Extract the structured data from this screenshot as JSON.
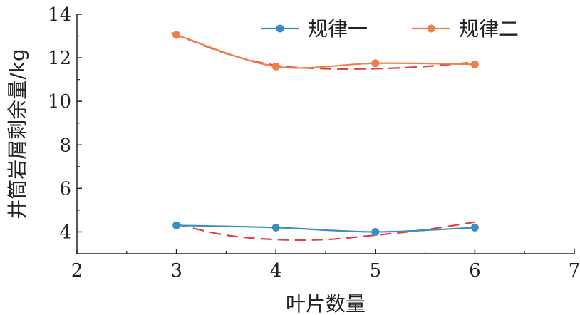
{
  "chart_data": {
    "type": "line",
    "xlabel": "叶片数量",
    "ylabel": "井筒岩屑剩余量/kg",
    "xlim": [
      2,
      7
    ],
    "ylim": [
      3,
      14
    ],
    "xticks": [
      2,
      3,
      4,
      5,
      6,
      7
    ],
    "yticks": [
      4,
      6,
      8,
      10,
      12,
      14
    ],
    "grid": false,
    "legend_position": "top-right",
    "series": [
      {
        "name": "规律一",
        "color": "#3a8fc0",
        "marker": "circle",
        "points": [
          [
            3,
            4.3
          ],
          [
            4,
            4.2
          ],
          [
            5,
            4.0
          ],
          [
            6,
            4.2
          ]
        ],
        "trend": {
          "color": "#e04040",
          "style": "dashed",
          "points": [
            [
              3,
              4.35
            ],
            [
              3.5,
              3.85
            ],
            [
              4,
              3.65
            ],
            [
              4.5,
              3.65
            ],
            [
              5,
              3.85
            ],
            [
              5.5,
              4.1
            ],
            [
              6,
              4.45
            ]
          ]
        }
      },
      {
        "name": "规律二",
        "color": "#ef7f4a",
        "marker": "circle",
        "points": [
          [
            3,
            13.05
          ],
          [
            4,
            11.6
          ],
          [
            5,
            11.75
          ],
          [
            6,
            11.7
          ]
        ],
        "trend": {
          "color": "#e04040",
          "style": "dashed",
          "points": [
            [
              2.95,
              13.15
            ],
            [
              3.5,
              12.2
            ],
            [
              4,
              11.65
            ],
            [
              4.5,
              11.5
            ],
            [
              5,
              11.5
            ],
            [
              5.5,
              11.6
            ],
            [
              6,
              11.8
            ]
          ]
        }
      }
    ]
  }
}
